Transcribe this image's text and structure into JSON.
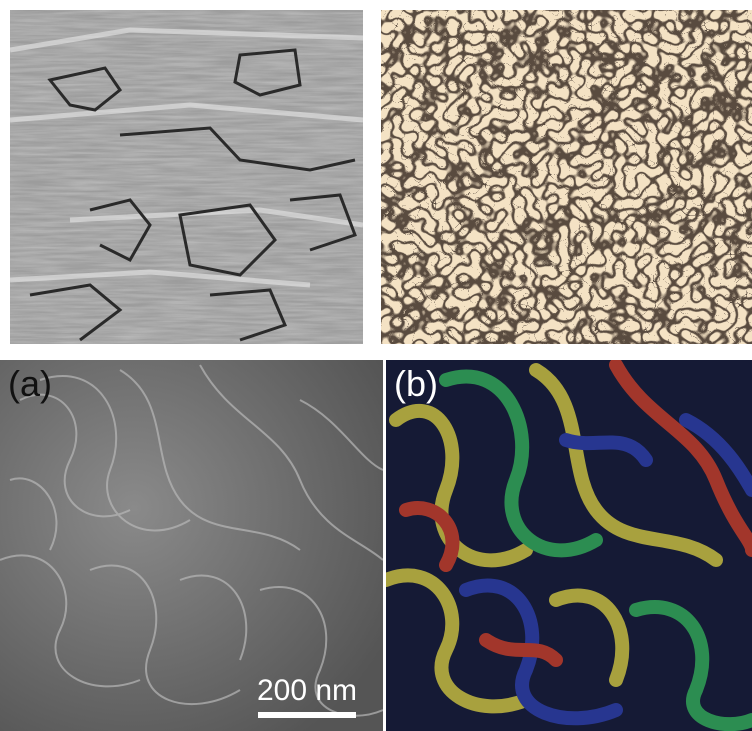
{
  "panels": {
    "top_left": {
      "description_icon": "grey-domain-micrograph"
    },
    "top_right": {
      "description_icon": "maze-pattern-simulation"
    },
    "bottom_left": {
      "label": "(a)"
    },
    "bottom_right": {
      "label": "(b)"
    }
  },
  "scale_bar": {
    "text": "200 nm"
  },
  "colors": {
    "background": "#ffffff",
    "maze_light": "#f4e2c4",
    "maze_dark": "#1a120c",
    "stripe_yellow": "#b8b040",
    "stripe_green": "#2f9a55",
    "stripe_red": "#b23a2a",
    "stripe_blue": "#2a3a9a"
  }
}
